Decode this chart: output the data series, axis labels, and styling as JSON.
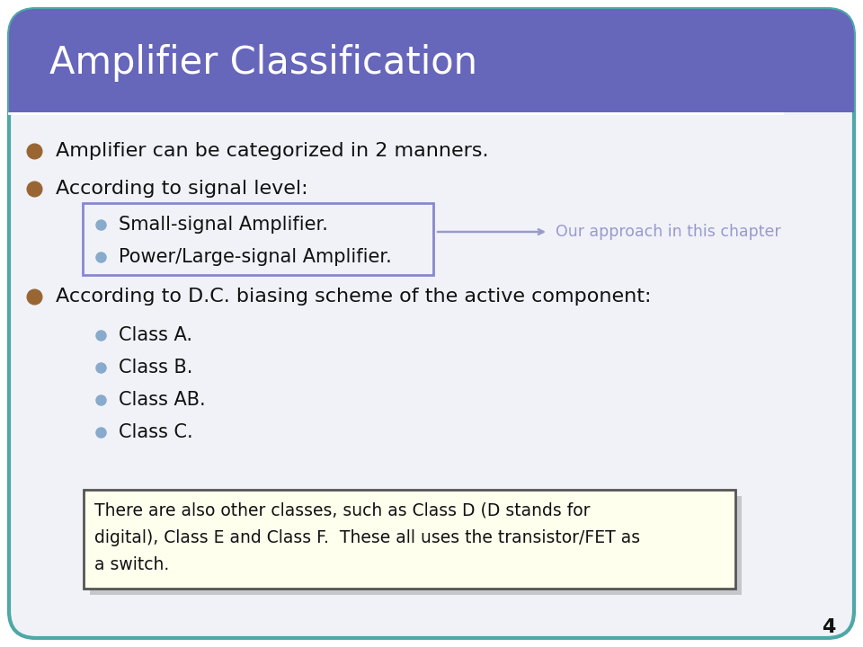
{
  "title": "Amplifier Classification",
  "title_color": "#ffffff",
  "title_bg_color": "#6666bb",
  "header_line_color": "#ffffff",
  "slide_bg_color": "#f0f2f8",
  "outer_border_color": "#4da8a8",
  "bullet_color_dark": "#996633",
  "bullet_color_light": "#88aacc",
  "main_bullets": [
    "Amplifier can be categorized in 2 manners.",
    "According to signal level:",
    "According to D.C. biasing scheme of the active component:"
  ],
  "sub_bullets_signal": [
    "Small-signal Amplifier.",
    "Power/Large-signal Amplifier."
  ],
  "sub_bullets_class": [
    "Class A.",
    "Class B.",
    "Class AB.",
    "Class C."
  ],
  "approach_text": "Our approach in this chapter",
  "approach_color": "#9999cc",
  "box_border_signal_color": "#8888cc",
  "note_text_line1": "There are also other classes, such as Class D (D stands for",
  "note_text_line2": "digital), Class E and Class F.  These all uses the transistor/FET as",
  "note_text_line3": "a switch.",
  "note_bg_color": "#ffffee",
  "note_border_color": "#555555",
  "page_number": "4",
  "text_color": "#111111"
}
